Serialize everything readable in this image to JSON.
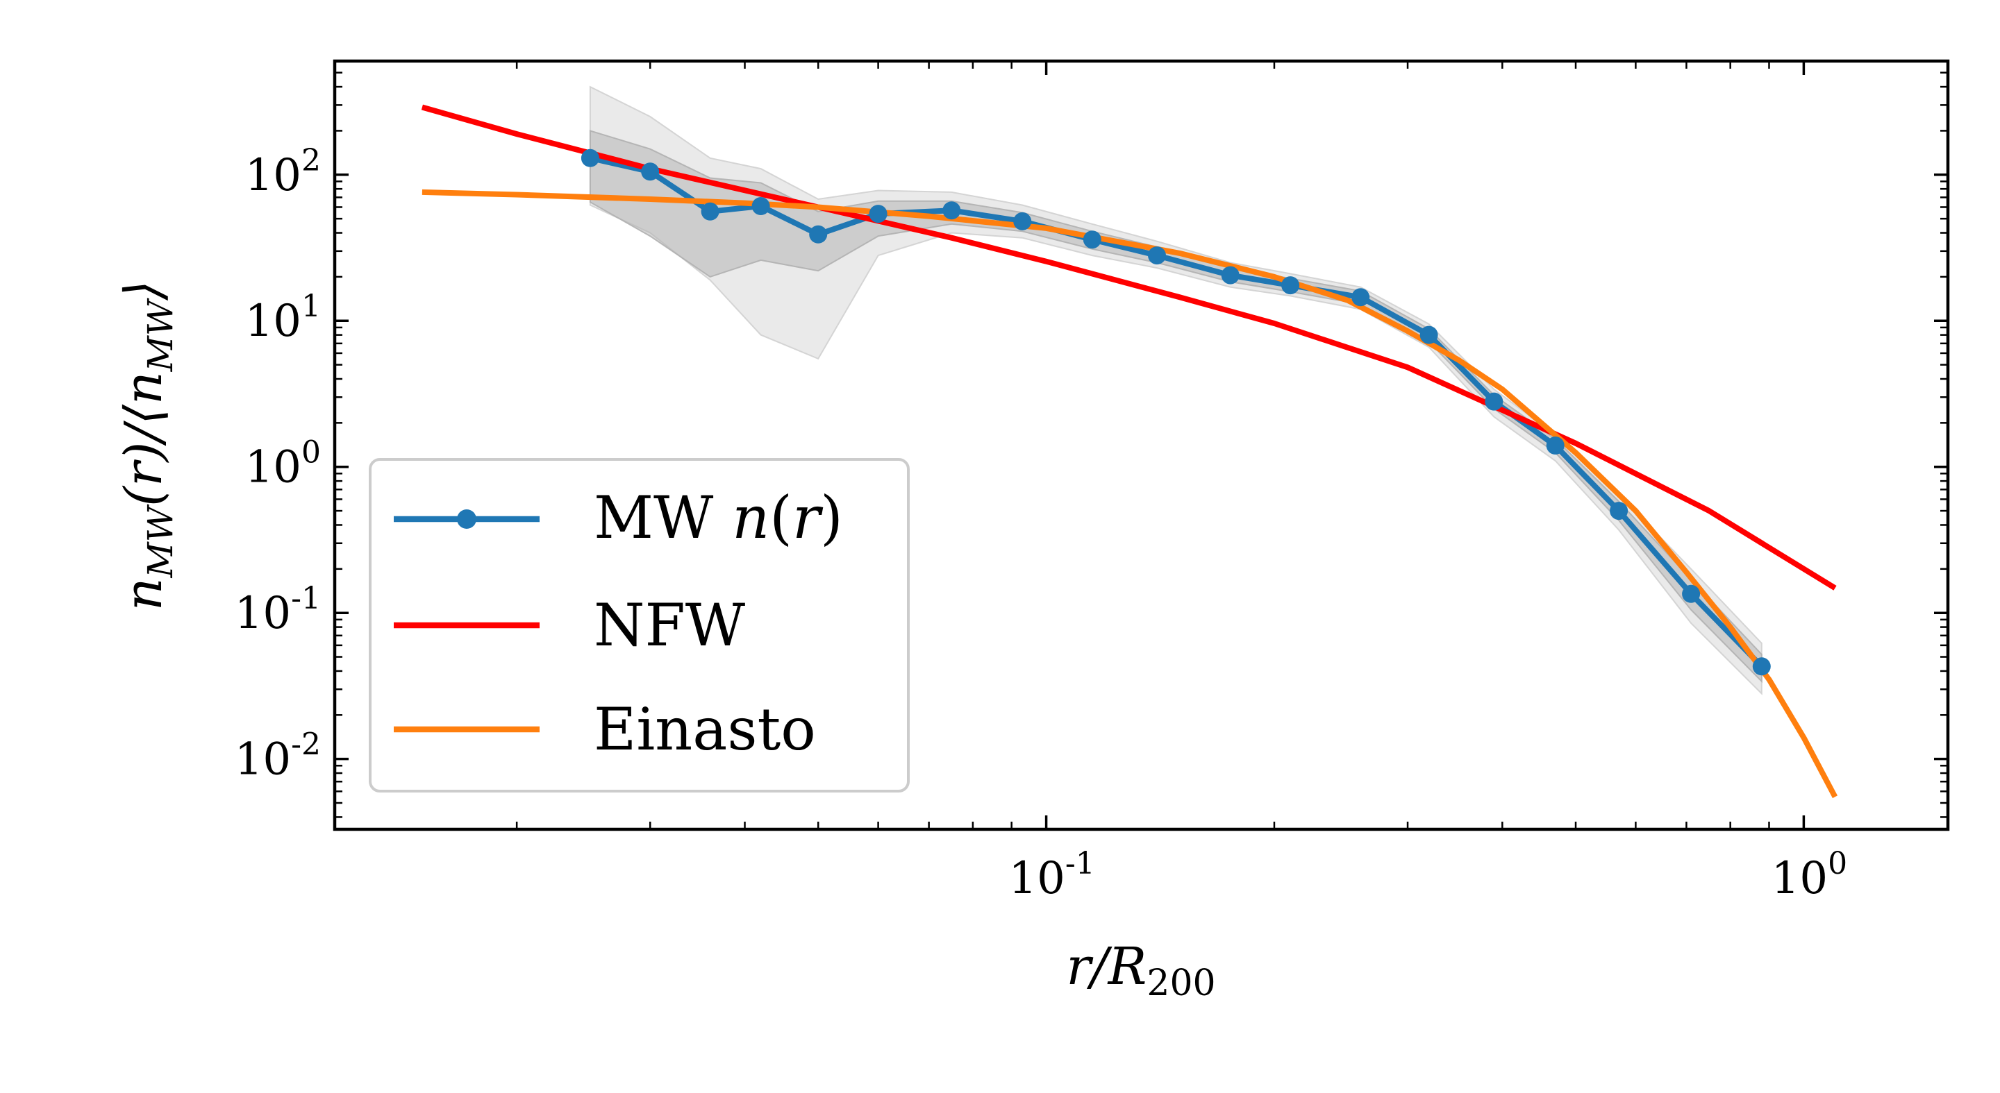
{
  "chart_data": {
    "type": "line",
    "xscale": "log",
    "yscale": "log",
    "xlim": [
      0.0115,
      1.55
    ],
    "ylim": [
      0.0033,
      600
    ],
    "grid": false,
    "legend_position": "lower-left",
    "x_ticks": [
      {
        "value": 0.1,
        "base": "10",
        "exp": "-1"
      },
      {
        "value": 1,
        "base": "10",
        "exp": "0"
      }
    ],
    "y_ticks": [
      {
        "value": 100,
        "base": "10",
        "exp": "2"
      },
      {
        "value": 10,
        "base": "10",
        "exp": "1"
      },
      {
        "value": 1,
        "base": "10",
        "exp": "0"
      },
      {
        "value": 0.1,
        "base": "10",
        "exp": "-1"
      },
      {
        "value": 0.01,
        "base": "10",
        "exp": "-2"
      }
    ],
    "x_minor_ticks": [
      0.02,
      0.03,
      0.04,
      0.05,
      0.06,
      0.07,
      0.08,
      0.09,
      0.2,
      0.3,
      0.4,
      0.5,
      0.6,
      0.7,
      0.8,
      0.9
    ],
    "y_minor_ticks": [
      0.004,
      0.005,
      0.006,
      0.007,
      0.008,
      0.009,
      0.02,
      0.03,
      0.04,
      0.05,
      0.06,
      0.07,
      0.08,
      0.09,
      0.2,
      0.3,
      0.4,
      0.5,
      0.6,
      0.7,
      0.8,
      0.9,
      2,
      3,
      4,
      5,
      6,
      7,
      8,
      9,
      20,
      30,
      40,
      50,
      60,
      70,
      80,
      90,
      200,
      300,
      400,
      500
    ],
    "series": [
      {
        "name": "MW n(r)",
        "legend_math": "MW n(r)",
        "color": "#1f77b4",
        "markers": true,
        "x": [
          0.025,
          0.03,
          0.036,
          0.042,
          0.05,
          0.06,
          0.075,
          0.093,
          0.115,
          0.14,
          0.175,
          0.21,
          0.26,
          0.32,
          0.39,
          0.47,
          0.57,
          0.71,
          0.88
        ],
        "y": [
          130,
          105,
          56,
          61,
          39,
          54,
          57,
          48,
          36,
          28,
          20.5,
          17.5,
          14.5,
          8.0,
          2.8,
          1.4,
          0.5,
          0.135,
          0.043
        ]
      },
      {
        "name": "NFW",
        "color": "#ff0000",
        "markers": false,
        "x": [
          0.015,
          0.02,
          0.03,
          0.05,
          0.075,
          0.1,
          0.15,
          0.2,
          0.3,
          0.5,
          0.75,
          1.1
        ],
        "y": [
          290,
          190,
          110,
          60,
          37,
          25.5,
          14.5,
          9.6,
          4.8,
          1.45,
          0.5,
          0.148
        ]
      },
      {
        "name": "Einasto",
        "color": "#ff7f0e",
        "markers": false,
        "x": [
          0.015,
          0.02,
          0.03,
          0.04,
          0.05,
          0.07,
          0.1,
          0.15,
          0.2,
          0.25,
          0.3,
          0.35,
          0.4,
          0.5,
          0.6,
          0.7,
          0.8,
          0.9,
          1.0,
          1.1
        ],
        "y": [
          76,
          73,
          68,
          64,
          60,
          52,
          43,
          29,
          20,
          13.8,
          8.5,
          5.4,
          3.4,
          1.25,
          0.5,
          0.19,
          0.08,
          0.035,
          0.014,
          0.0055
        ]
      }
    ],
    "bands": [
      {
        "color": "#d0d0d0",
        "opacity": 0.45,
        "x": [
          0.025,
          0.03,
          0.036,
          0.042,
          0.05,
          0.06,
          0.075,
          0.093,
          0.115,
          0.14,
          0.175,
          0.21,
          0.26,
          0.32,
          0.39,
          0.47,
          0.57,
          0.71,
          0.88
        ],
        "upper": [
          400,
          250,
          130,
          110,
          68,
          78,
          76,
          62,
          46,
          35,
          25,
          21,
          17,
          9.5,
          3.4,
          1.65,
          0.65,
          0.2,
          0.062
        ],
        "lower": [
          62,
          40,
          19,
          8,
          5.5,
          28,
          40,
          37,
          28,
          23,
          17,
          14.8,
          12,
          6.6,
          2.2,
          1.1,
          0.37,
          0.085,
          0.028
        ]
      },
      {
        "color": "#b0b0b0",
        "opacity": 0.5,
        "x": [
          0.025,
          0.03,
          0.036,
          0.042,
          0.05,
          0.06,
          0.075,
          0.093,
          0.115,
          0.14,
          0.175,
          0.21,
          0.26,
          0.32,
          0.39,
          0.47,
          0.57,
          0.71,
          0.88
        ],
        "upper": [
          200,
          150,
          95,
          88,
          56,
          66,
          66,
          55,
          41,
          32,
          23,
          19.5,
          16,
          8.8,
          3.1,
          1.55,
          0.58,
          0.17,
          0.052
        ],
        "lower": [
          65,
          38,
          20,
          26,
          22,
          38,
          46,
          41,
          31,
          25,
          18.5,
          15.8,
          13,
          7.2,
          2.5,
          1.25,
          0.43,
          0.105,
          0.034
        ]
      }
    ]
  }
}
